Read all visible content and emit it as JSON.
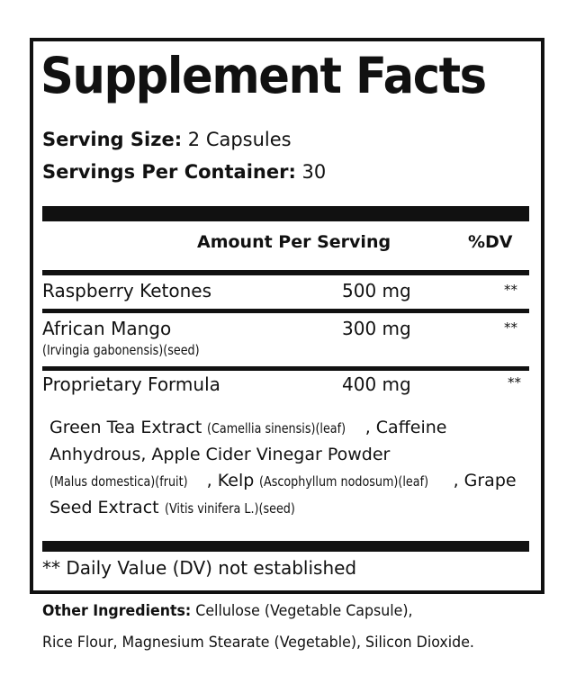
{
  "title": "Supplement Facts",
  "serving_size": {
    "label": "Serving Size:",
    "value": "2 Capsules"
  },
  "servings_per_container": {
    "label": "Servings Per Container:",
    "value": "30"
  },
  "columns": {
    "amount": "Amount Per Serving",
    "dv": "%DV"
  },
  "rows": [
    {
      "name": "Raspberry Ketones",
      "amount": "500 mg",
      "dv": "**"
    },
    {
      "name": "African Mango",
      "detail": "(Irvingia gabonensis)(seed)",
      "amount": "300 mg",
      "dv": "**"
    },
    {
      "name": "Proprietary Formula",
      "amount": "400 mg",
      "dv": "**"
    }
  ],
  "blend": [
    {
      "text": "Green Tea Extract ",
      "small": false
    },
    {
      "text": "(Camellia sinensis)(leaf)",
      "small": true
    },
    {
      "text": ", Caffeine Anhydrous, Apple Cider Vinegar Powder ",
      "small": false
    },
    {
      "text": "(Malus domestica)(fruit)",
      "small": true
    },
    {
      "text": ", Kelp ",
      "small": false
    },
    {
      "text": "(Ascophyllum nodosum)(leaf)",
      "small": true
    },
    {
      "text": ", Grape Seed Extract ",
      "small": false
    },
    {
      "text": "(Vitis vinifera L.)(seed)",
      "small": true
    }
  ],
  "footnote": "** Daily Value (DV) not established",
  "other_ingredients": {
    "label": "Other Ingredients:",
    "line1": " Cellulose (Vegetable Capsule),",
    "line2": "Rice Flour, Magnesium Stearate (Vegetable), Silicon Dioxide."
  }
}
